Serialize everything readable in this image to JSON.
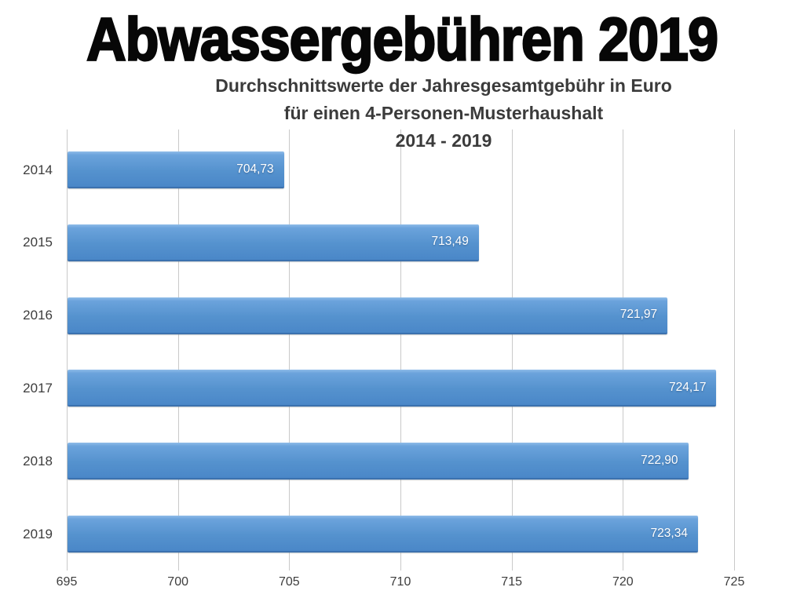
{
  "title": "Abwassergebühren 2019",
  "subtitle": {
    "lines": [
      "Durchschnittswerte der Jahresgesamtgebühr in Euro",
      "für einen 4-Personen-Musterhaushalt",
      "2014 - 2019"
    ]
  },
  "colors": {
    "bar_highlight": "#8FBCE8",
    "bar_top": "#6BA3DC",
    "bar_mid": "#5592CE",
    "bar_bottom": "#4A87C8",
    "bar_edge": "#3B71AE",
    "gridline": "#C9C9C9",
    "value_label": "#FFFFFF",
    "axis_text": "#3D3D3D",
    "title_text": "#070707",
    "subtitle_text": "#3B3B3B"
  },
  "chart_data": {
    "type": "bar",
    "orientation": "horizontal",
    "title": "Abwassergebühren 2019",
    "subtitle": "Durchschnittswerte der Jahresgesamtgebühr in Euro für einen 4-Personen-Musterhaushalt 2014 - 2019",
    "categories": [
      "2014",
      "2015",
      "2016",
      "2017",
      "2018",
      "2019"
    ],
    "values": [
      704.73,
      713.49,
      721.97,
      724.17,
      722.9,
      723.34
    ],
    "value_labels": [
      "704,73",
      "713,49",
      "721,97",
      "724,17",
      "722,90",
      "723,34"
    ],
    "xlabel": "",
    "ylabel": "",
    "xlim": [
      695,
      725
    ],
    "x_ticks": [
      695,
      700,
      705,
      710,
      715,
      720,
      725
    ],
    "grid": true,
    "legend": false,
    "unit": "Euro"
  }
}
